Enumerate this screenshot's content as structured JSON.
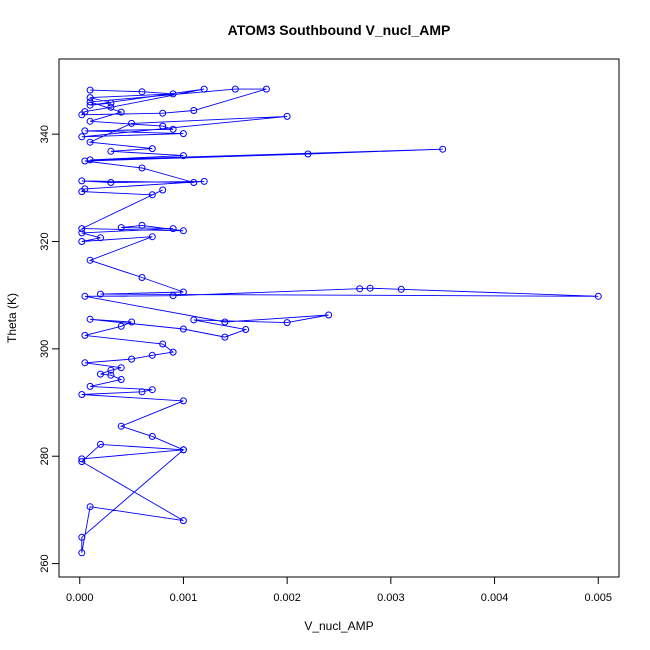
{
  "chart_data": {
    "type": "line",
    "title": "ATOM3 Southbound V_nucl_AMP",
    "xlabel": "V_nucl_AMP",
    "ylabel": "Theta (K)",
    "xlim": [
      -0.0002,
      0.0052
    ],
    "ylim": [
      257.5,
      354
    ],
    "x_ticks": [
      0.0,
      0.001,
      0.002,
      0.003,
      0.004,
      0.005
    ],
    "x_tick_labels": [
      "0.000",
      "0.001",
      "0.002",
      "0.003",
      "0.004",
      "0.005"
    ],
    "y_ticks": [
      260,
      280,
      300,
      320,
      340
    ],
    "y_tick_labels": [
      "260",
      "280",
      "300",
      "320",
      "340"
    ],
    "grid": false,
    "legend": "none",
    "series_color": "#0000ff",
    "marker": "open-circle",
    "series": [
      {
        "x": [
          0.0001,
          0.0006,
          0.0009,
          0.0001,
          0.0003,
          0.0001,
          0.0012,
          0.0003,
          5e-05,
          2e-05,
          0.0008,
          0.0011,
          0.0018,
          0.0015,
          0.0001,
          0.0004,
          0.0001,
          0.0008,
          0.0009,
          5e-05,
          0.001,
          2e-05,
          0.002,
          0.0005,
          0.0001,
          0.0007,
          0.0003,
          0.001,
          0.0001,
          0.0035,
          0.0022,
          5e-05,
          0.0006,
          0.0011,
          2e-05,
          0.0003,
          0.0012,
          5e-05,
          2e-05,
          0.0007,
          0.0008,
          2e-05,
          0.001,
          0.0006,
          0.0004,
          0.0009,
          2e-05,
          0.0002,
          2e-05,
          0.0007,
          0.0001,
          0.0006,
          0.001,
          0.0002,
          0.005,
          0.0031,
          0.0028,
          0.0027,
          0.0009,
          5e-05,
          0.0014,
          0.0024,
          0.002,
          0.0011,
          0.0016,
          0.0014,
          0.001,
          0.0001,
          0.0005,
          0.0004,
          5e-05,
          0.0008,
          0.0009,
          0.0007,
          0.0005,
          5e-05,
          0.0004,
          0.0003,
          0.0002,
          0.0003,
          0.0004,
          0.0001,
          0.0007,
          0.0006,
          2e-05,
          0.001,
          0.0004,
          0.0007,
          0.001,
          0.0002,
          2e-05,
          0.001,
          0.0001,
          2e-05,
          2e-05,
          0.001,
          2e-05
        ],
        "y": [
          348.2,
          347.9,
          347.5,
          346.8,
          345.8,
          345.4,
          348.4,
          345.0,
          344.2,
          343.6,
          343.9,
          344.4,
          348.4,
          348.4,
          346.0,
          344.1,
          342.4,
          341.5,
          340.9,
          340.6,
          340.1,
          339.5,
          343.3,
          342.0,
          338.5,
          337.3,
          336.8,
          336.0,
          335.2,
          337.2,
          336.3,
          335.0,
          333.7,
          331.0,
          331.3,
          331.0,
          331.2,
          329.8,
          329.3,
          328.7,
          329.6,
          322.4,
          322.0,
          323.0,
          322.6,
          322.4,
          321.6,
          320.7,
          320.0,
          320.9,
          316.5,
          313.3,
          310.6,
          310.2,
          309.8,
          311.1,
          311.3,
          311.2,
          309.9,
          309.8,
          305.0,
          306.3,
          304.9,
          305.4,
          303.6,
          302.2,
          303.7,
          305.5,
          305.0,
          304.2,
          302.5,
          300.9,
          299.4,
          298.8,
          298.1,
          297.4,
          296.5,
          296.0,
          295.3,
          295.1,
          294.3,
          293.0,
          292.4,
          292.0,
          291.5,
          290.3,
          285.6,
          283.7,
          281.2,
          282.2,
          279.0,
          268.0,
          270.6,
          262.0,
          264.9,
          281.2,
          279.5
        ]
      }
    ]
  }
}
